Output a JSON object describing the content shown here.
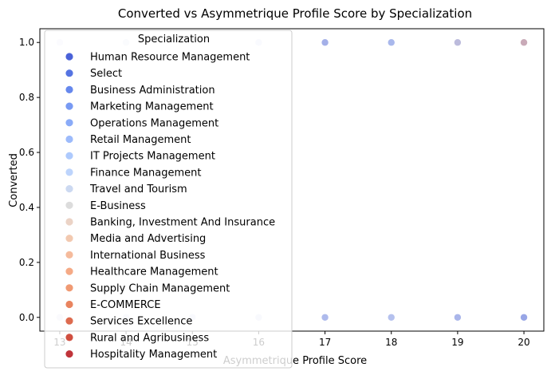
{
  "chart_data": {
    "type": "scatter",
    "title": "Converted vs Asymmetrique Profile Score by Specialization",
    "xlabel": "Asymmetrique Profile Score",
    "ylabel": "Converted",
    "xlim": [
      12.7,
      20.3
    ],
    "ylim": [
      -0.05,
      1.05
    ],
    "xticks": [
      13,
      14,
      15,
      16,
      17,
      18,
      19,
      20
    ],
    "xtick_labels": [
      "13",
      "14",
      "15",
      "16",
      "17",
      "18",
      "19",
      "20"
    ],
    "yticks": [
      0.0,
      0.2,
      0.4,
      0.6,
      0.8,
      1.0
    ],
    "ytick_labels": [
      "0.0",
      "0.2",
      "0.4",
      "0.6",
      "0.8",
      "1.0"
    ],
    "grid": false,
    "legend": {
      "title": "Specialization",
      "placement": "upper left",
      "entries": [
        {
          "name": "Human Resource Management",
          "color": "#4a62d8"
        },
        {
          "name": "Select",
          "color": "#5574e2"
        },
        {
          "name": "Business Administration",
          "color": "#6688ed"
        },
        {
          "name": "Marketing Management",
          "color": "#789af3"
        },
        {
          "name": "Operations Management",
          "color": "#8aabf8"
        },
        {
          "name": "Retail Management",
          "color": "#9dbbfb"
        },
        {
          "name": "IT Projects Management",
          "color": "#aecafd"
        },
        {
          "name": "Finance Management",
          "color": "#bdd4fc"
        },
        {
          "name": "Travel and Tourism",
          "color": "#ccd9f1"
        },
        {
          "name": "E-Business",
          "color": "#dcdcdc"
        },
        {
          "name": "Banking, Investment And Insurance",
          "color": "#ebd3c6"
        },
        {
          "name": "Media and Advertising",
          "color": "#f2c9b0"
        },
        {
          "name": "International Business",
          "color": "#f5bb9c"
        },
        {
          "name": "Healthcare Management",
          "color": "#f5aa86"
        },
        {
          "name": "Supply Chain Management",
          "color": "#f09a73"
        },
        {
          "name": "E-COMMERCE",
          "color": "#e9845f"
        },
        {
          "name": "Services Excellence",
          "color": "#dd6b4f"
        },
        {
          "name": "Rural and Agribusiness",
          "color": "#d04f40"
        },
        {
          "name": "Hospitality Management",
          "color": "#c0343a"
        }
      ]
    },
    "points": [
      {
        "x": 13,
        "y": 1,
        "color": "#e8ebf7"
      },
      {
        "x": 14,
        "y": 1,
        "color": "#e6e9f6"
      },
      {
        "x": 16,
        "y": 1,
        "color": "#dfe3f7"
      },
      {
        "x": 17,
        "y": 1,
        "color": "#a4b0e8"
      },
      {
        "x": 18,
        "y": 1,
        "color": "#a9b8ec"
      },
      {
        "x": 19,
        "y": 1,
        "color": "#bcbbdc"
      },
      {
        "x": 20,
        "y": 1,
        "color": "#c9aab8"
      },
      {
        "x": 13,
        "y": 0,
        "color": "#e4e6f2"
      },
      {
        "x": 14,
        "y": 0,
        "color": "#dfe3f4"
      },
      {
        "x": 15,
        "y": 0,
        "color": "#dde2f4"
      },
      {
        "x": 16,
        "y": 0,
        "color": "#dbe0f5"
      },
      {
        "x": 17,
        "y": 0,
        "color": "#aebaec"
      },
      {
        "x": 18,
        "y": 0,
        "color": "#b5c1ee"
      },
      {
        "x": 19,
        "y": 0,
        "color": "#aab6ea"
      },
      {
        "x": 20,
        "y": 0,
        "color": "#98a6e6"
      }
    ]
  }
}
